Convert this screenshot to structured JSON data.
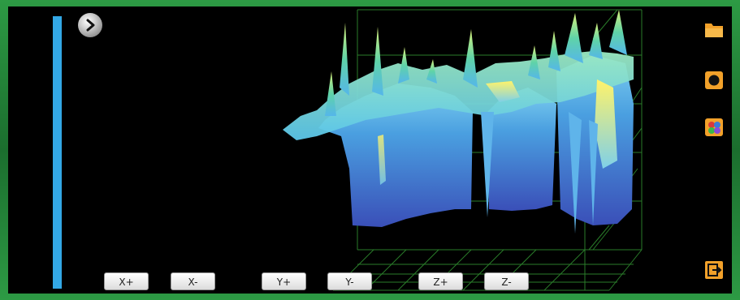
{
  "controls": {
    "x_plus": "X+",
    "x_minus": "X-",
    "y_plus": "Y+",
    "y_minus": "Y-",
    "z_plus": "Z+",
    "z_minus": "Z-"
  },
  "icons": {
    "expand": "chevron-right-icon",
    "open": "folder-icon",
    "record": "record-icon",
    "palette": "color-palette-icon",
    "exit": "exit-icon"
  },
  "colors": {
    "frame": "#1f7a33",
    "accent_bar": "#33a8e6",
    "icon_orange": "#f2a12a"
  }
}
